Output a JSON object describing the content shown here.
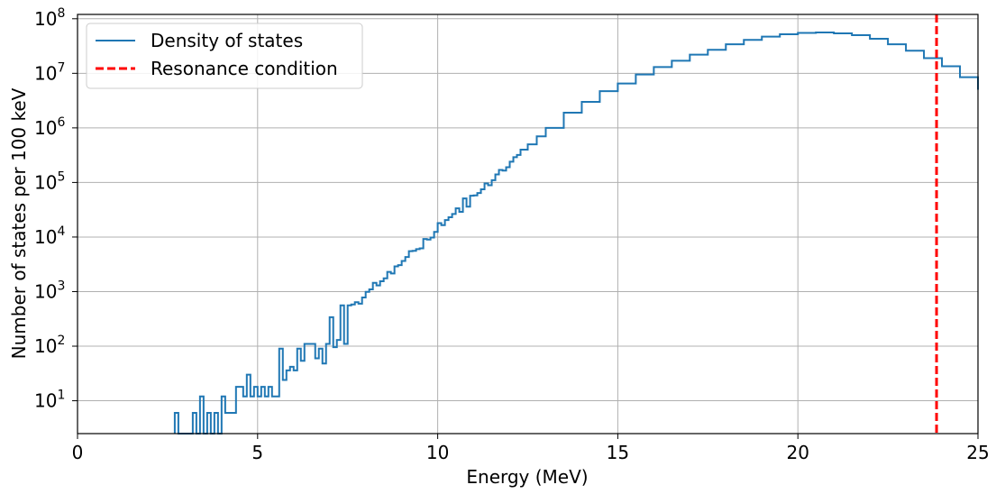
{
  "chart_data": {
    "type": "line",
    "drawstyle": "steps",
    "xlabel": "Energy (MeV)",
    "ylabel": "Number of states per 100 keV",
    "xlim": [
      0,
      25
    ],
    "ylim": [
      2.5,
      120000000
    ],
    "yscale": "log",
    "grid": true,
    "legend_position": "upper-left",
    "x_ticks": [
      "0",
      "5",
      "10",
      "15",
      "20",
      "25"
    ],
    "y_ticks": [
      {
        "base": "10",
        "exp": "1"
      },
      {
        "base": "10",
        "exp": "2"
      },
      {
        "base": "10",
        "exp": "3"
      },
      {
        "base": "10",
        "exp": "4"
      },
      {
        "base": "10",
        "exp": "5"
      },
      {
        "base": "10",
        "exp": "6"
      },
      {
        "base": "10",
        "exp": "7"
      },
      {
        "base": "10",
        "exp": "8"
      }
    ],
    "series": [
      {
        "name": "Density of states",
        "color": "#1f77b4",
        "points": [
          [
            2.7,
            6
          ],
          [
            2.8,
            1
          ],
          [
            3.0,
            1
          ],
          [
            3.2,
            6
          ],
          [
            3.3,
            1
          ],
          [
            3.4,
            12
          ],
          [
            3.5,
            1
          ],
          [
            3.6,
            6
          ],
          [
            3.7,
            1
          ],
          [
            3.8,
            6
          ],
          [
            3.9,
            1
          ],
          [
            4.0,
            12
          ],
          [
            4.1,
            6
          ],
          [
            4.4,
            18
          ],
          [
            4.6,
            12
          ],
          [
            4.7,
            30
          ],
          [
            4.8,
            12
          ],
          [
            4.9,
            18
          ],
          [
            5.0,
            12
          ],
          [
            5.1,
            18
          ],
          [
            5.2,
            12
          ],
          [
            5.3,
            18
          ],
          [
            5.4,
            12
          ],
          [
            5.6,
            90
          ],
          [
            5.7,
            24
          ],
          [
            5.8,
            36
          ],
          [
            5.9,
            42
          ],
          [
            6.0,
            36
          ],
          [
            6.1,
            90
          ],
          [
            6.2,
            54
          ],
          [
            6.3,
            110
          ],
          [
            6.5,
            110
          ],
          [
            6.6,
            60
          ],
          [
            6.7,
            90
          ],
          [
            6.8,
            48
          ],
          [
            6.9,
            110
          ],
          [
            7.0,
            340
          ],
          [
            7.1,
            96
          ],
          [
            7.2,
            130
          ],
          [
            7.3,
            560
          ],
          [
            7.4,
            110
          ],
          [
            7.5,
            560
          ],
          [
            7.6,
            580
          ],
          [
            7.7,
            640
          ],
          [
            7.8,
            600
          ],
          [
            7.9,
            780
          ],
          [
            8.0,
            990
          ],
          [
            8.1,
            1100
          ],
          [
            8.2,
            1450
          ],
          [
            8.3,
            1300
          ],
          [
            8.4,
            1550
          ],
          [
            8.5,
            1750
          ],
          [
            8.6,
            2300
          ],
          [
            8.7,
            2150
          ],
          [
            8.8,
            2900
          ],
          [
            8.9,
            3050
          ],
          [
            9.0,
            3650
          ],
          [
            9.1,
            4300
          ],
          [
            9.2,
            5500
          ],
          [
            9.3,
            5600
          ],
          [
            9.4,
            6000
          ],
          [
            9.5,
            6200
          ],
          [
            9.6,
            9200
          ],
          [
            9.7,
            9000
          ],
          [
            9.8,
            9800
          ],
          [
            9.9,
            12400
          ],
          [
            10.0,
            18000
          ],
          [
            10.1,
            16500
          ],
          [
            10.2,
            20500
          ],
          [
            10.3,
            23000
          ],
          [
            10.4,
            26500
          ],
          [
            10.5,
            33500
          ],
          [
            10.6,
            29000
          ],
          [
            10.7,
            51000
          ],
          [
            10.8,
            36000
          ],
          [
            10.9,
            57000
          ],
          [
            11.0,
            58000
          ],
          [
            11.1,
            64000
          ],
          [
            11.2,
            75000
          ],
          [
            11.3,
            96000
          ],
          [
            11.4,
            89000
          ],
          [
            11.5,
            110000
          ],
          [
            11.6,
            140000
          ],
          [
            11.7,
            170000
          ],
          [
            11.8,
            165000
          ],
          [
            11.9,
            190000
          ],
          [
            12.0,
            240000
          ],
          [
            12.1,
            290000
          ],
          [
            12.2,
            320000
          ],
          [
            12.3,
            400000
          ],
          [
            12.5,
            500000
          ],
          [
            12.75,
            700000
          ],
          [
            13.0,
            1000000
          ],
          [
            13.5,
            1900000
          ],
          [
            14.0,
            3000000
          ],
          [
            14.5,
            4700000
          ],
          [
            15.0,
            6500000
          ],
          [
            15.5,
            9500000
          ],
          [
            16.0,
            13000000
          ],
          [
            16.5,
            17000000
          ],
          [
            17.0,
            22000000
          ],
          [
            17.5,
            27000000
          ],
          [
            18.0,
            34000000
          ],
          [
            18.5,
            41000000
          ],
          [
            19.0,
            47000000
          ],
          [
            19.5,
            52000000
          ],
          [
            20.0,
            55000000
          ],
          [
            20.5,
            56000000
          ],
          [
            21.0,
            54000000
          ],
          [
            21.5,
            50000000
          ],
          [
            22.0,
            43000000
          ],
          [
            22.5,
            34000000
          ],
          [
            23.0,
            26000000
          ],
          [
            23.5,
            19000000
          ],
          [
            24.0,
            13500000
          ],
          [
            24.5,
            8500000
          ],
          [
            25.0,
            5000000
          ]
        ]
      },
      {
        "name": "Resonance condition",
        "color": "#ff0000",
        "style": "dashed",
        "x": 23.85
      }
    ]
  }
}
